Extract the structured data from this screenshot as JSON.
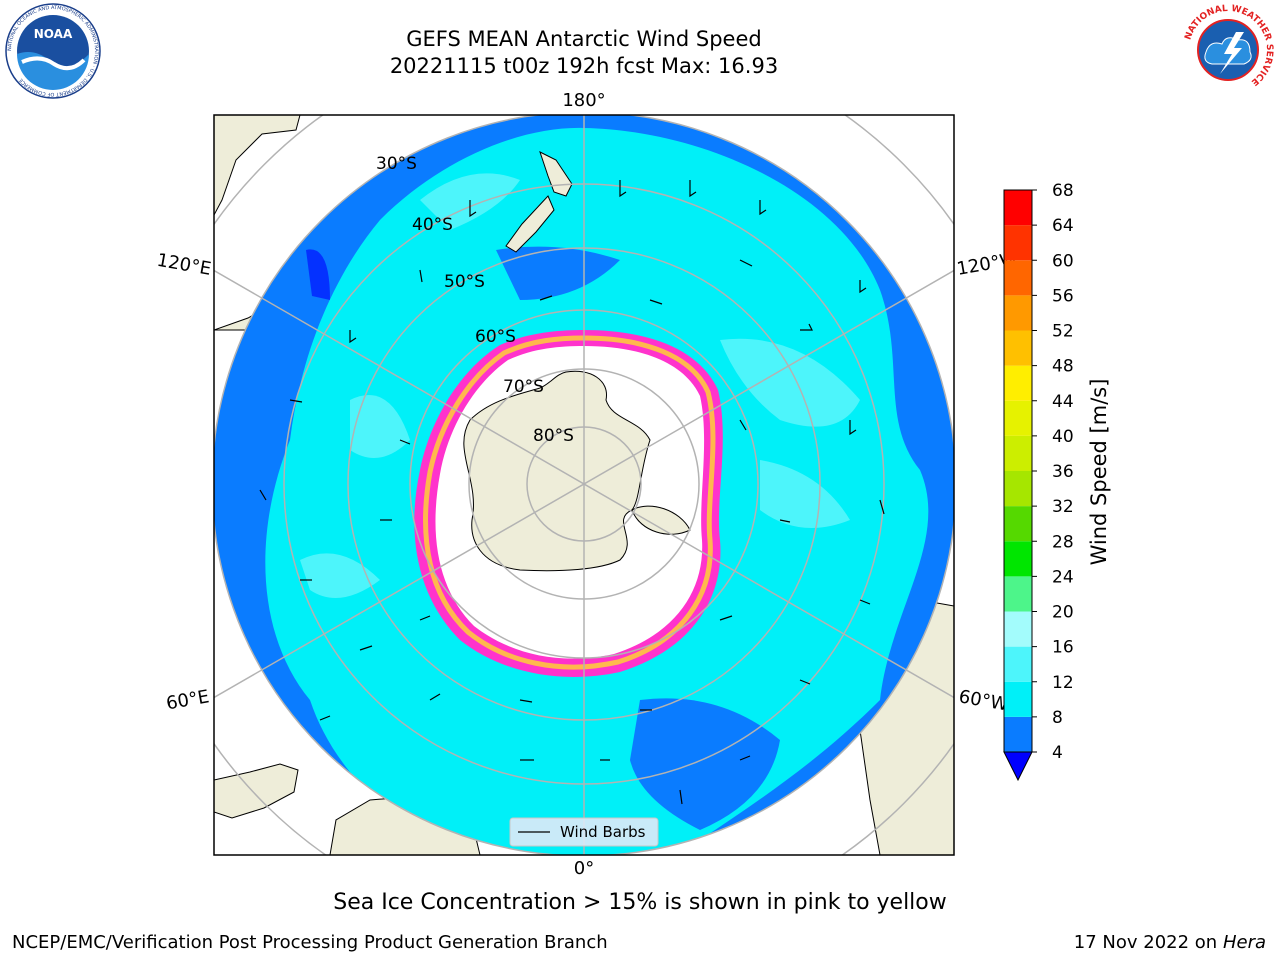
{
  "header": {
    "title_line1": "GEFS MEAN Antarctic Wind Speed",
    "title_line2": "20221115 t00z 192h fcst   Max: 16.93"
  },
  "logos": {
    "left": {
      "text": "NOAA",
      "icon": "noaa-logo-icon",
      "ring_text": "NATIONAL OCEANIC AND ATMOSPHERIC ADMINISTRATION · U.S. DEPARTMENT OF COMMERCE"
    },
    "right": {
      "icon": "nws-logo-icon",
      "ring_text": "NATIONAL WEATHER SERVICE"
    }
  },
  "map": {
    "projection": "south-polar-stereographic",
    "longitude_labels": {
      "top": "180°",
      "bottom": "0°",
      "upper_left": "120°E",
      "upper_right": "120°W",
      "lower_left": "60°E",
      "lower_right": "60°W"
    },
    "latitude_labels": [
      "30°S",
      "40°S",
      "50°S",
      "60°S",
      "70°S",
      "80°S"
    ],
    "legend": {
      "label": "Wind Barbs"
    },
    "colors": {
      "ocean_low": "#0a7cff",
      "ocean_mid": "#00f0f8",
      "ocean_high": "#4df5fb",
      "land": "#eeedd9",
      "sea_ice": "#ff33cc",
      "ice_edge": "#ffb84d"
    }
  },
  "colorbar": {
    "label": "Wind Speed [m/s]",
    "ticks": [
      "4",
      "8",
      "12",
      "16",
      "20",
      "24",
      "28",
      "32",
      "36",
      "40",
      "44",
      "48",
      "52",
      "56",
      "60",
      "64",
      "68"
    ],
    "colors": [
      "#0000ff",
      "#0a7cff",
      "#00f0f8",
      "#4df5fb",
      "#a3fcfc",
      "#4df58a",
      "#00e600",
      "#55d900",
      "#a6e600",
      "#ccee00",
      "#e6f200",
      "#ffee00",
      "#ffc000",
      "#ff9900",
      "#ff6600",
      "#ff3300",
      "#ff0000"
    ]
  },
  "caption": "Sea Ice Concentration > 15% is shown in pink to yellow",
  "footer": {
    "left": "NCEP/EMC/Verification Post Processing Product Generation Branch",
    "right_date": "17 Nov 2022 on",
    "right_host": "Hera"
  }
}
